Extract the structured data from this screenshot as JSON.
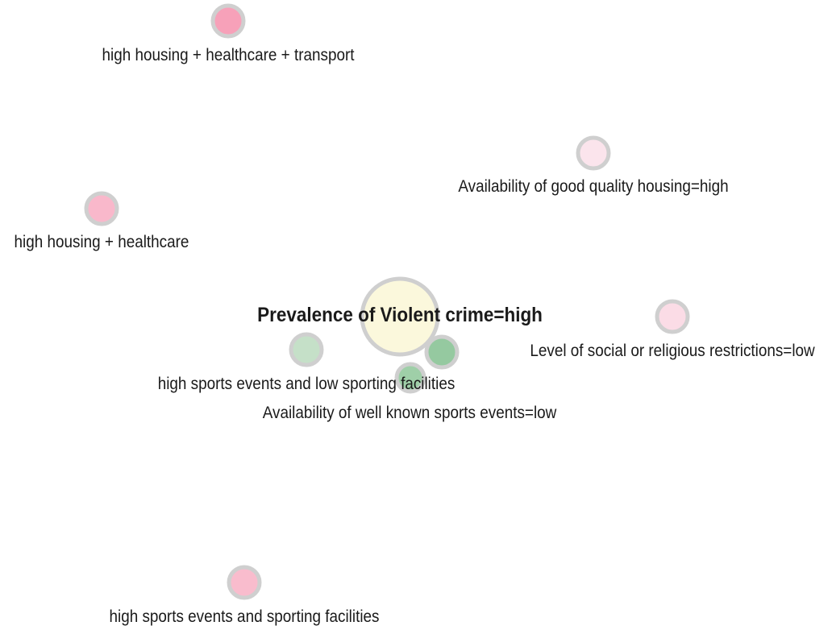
{
  "center": {
    "label": "Prevalence of Violent crime=high",
    "color": "#fbf8dc"
  },
  "nodes": [
    {
      "label": "high housing + healthcare + transport",
      "color": "#f7a1b9"
    },
    {
      "label": "Availability of good quality housing=high",
      "color": "#fbe4ec"
    },
    {
      "label": "high housing + healthcare",
      "color": "#f9b8cb"
    },
    {
      "label": "Level of social or religious restrictions=low",
      "color": "#fbdce6"
    },
    {
      "label": "high sports events and low sporting facilities",
      "color": "#c5e0c8"
    },
    {
      "label": "",
      "color": "#95c9a0"
    },
    {
      "label": "Availability of well known sports events=low",
      "color": "#9fcfa8"
    },
    {
      "label": "high sports events and sporting facilities",
      "color": "#f9bccd"
    }
  ]
}
